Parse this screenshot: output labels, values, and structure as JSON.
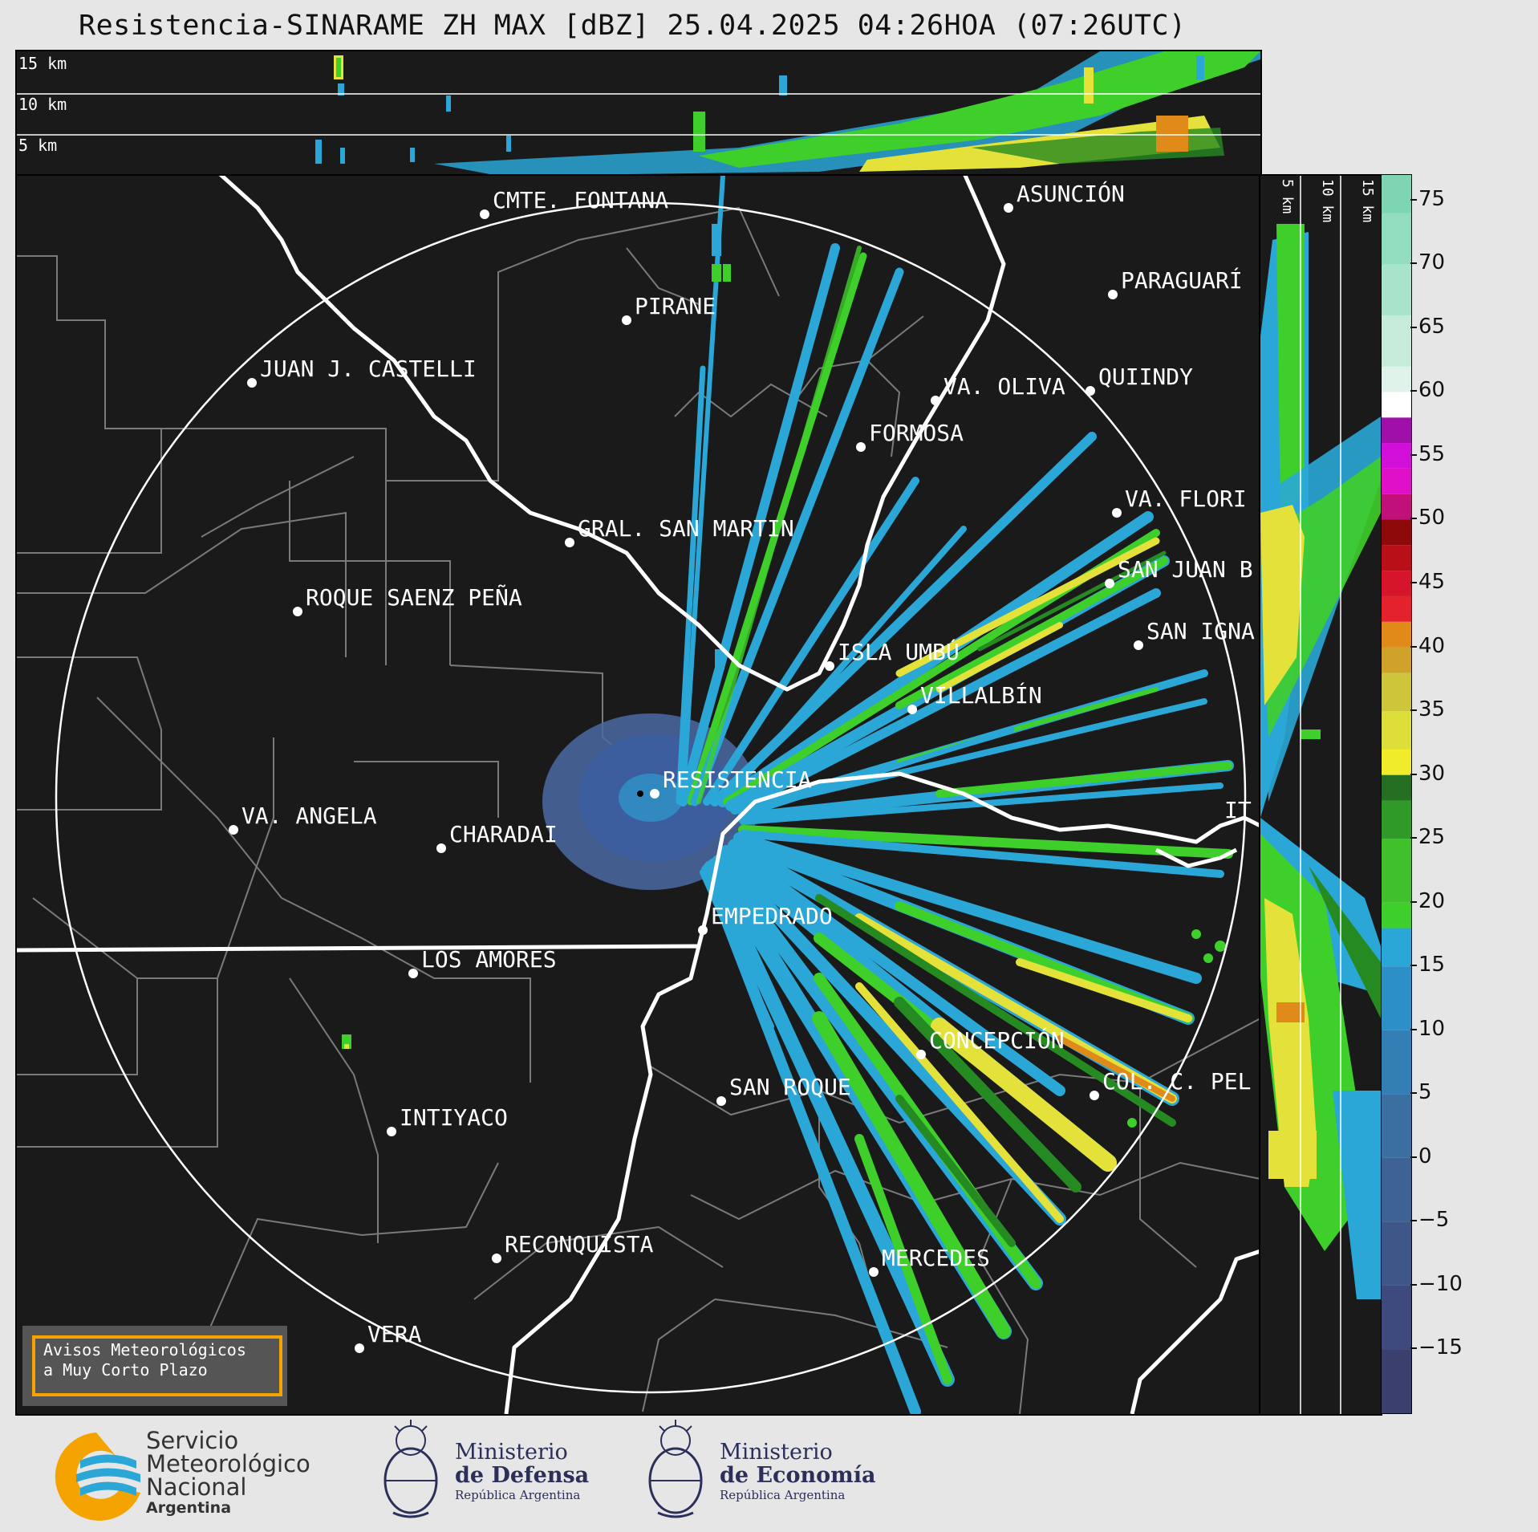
{
  "title": "Resistencia-SINARAME ZH MAX [dBZ] 25.04.2025 04:26HOA (07:26UTC)",
  "height_labels_top": [
    "15 km",
    "10 km",
    "5 km"
  ],
  "height_labels_side": [
    "5 km",
    "10 km",
    "15 km"
  ],
  "colorbar": {
    "unit": "dBZ",
    "ticks": [
      "75",
      "70",
      "65",
      "60",
      "55",
      "50",
      "45",
      "40",
      "35",
      "30",
      "25",
      "20",
      "15",
      "10",
      "5",
      "0",
      "−5",
      "−10",
      "−15"
    ]
  },
  "cities": [
    {
      "name": "CMTE. FONTANA"
    },
    {
      "name": "ASUNCIÓN"
    },
    {
      "name": "PARAGUARÍ"
    },
    {
      "name": "PIRANE"
    },
    {
      "name": "JUAN J. CASTELLI"
    },
    {
      "name": "VA. OLIVA"
    },
    {
      "name": "QUIINDY"
    },
    {
      "name": "FORMOSA"
    },
    {
      "name": "VA. FLORI"
    },
    {
      "name": "GRAL. SAN MARTIN"
    },
    {
      "name": "SAN JUAN B"
    },
    {
      "name": "ROQUE SAENZ PEÑA"
    },
    {
      "name": "SAN IGNA"
    },
    {
      "name": "ISLA UMBÚ"
    },
    {
      "name": "VILLALBÍN"
    },
    {
      "name": "RESISTENCIA"
    },
    {
      "name": "IT"
    },
    {
      "name": "VA. ANGELA"
    },
    {
      "name": "CHARADAI"
    },
    {
      "name": "EMPEDRADO"
    },
    {
      "name": "LOS AMORES"
    },
    {
      "name": "CONCEPCIÓN"
    },
    {
      "name": "SAN ROQUE"
    },
    {
      "name": "COL. C. PEL"
    },
    {
      "name": "INTIYACO"
    },
    {
      "name": "RECONQUISTA"
    },
    {
      "name": "MERCEDES"
    },
    {
      "name": "VERA"
    }
  ],
  "warning": {
    "line1": "Avisos Meteorológicos",
    "line2": "a Muy Corto Plazo"
  },
  "logos": {
    "smn": {
      "l1": "Servicio",
      "l2": "Meteorológico",
      "l3": "Nacional",
      "l4": "Argentina"
    },
    "defensa": {
      "l1": "Ministerio",
      "l2": "de Defensa",
      "l3": "República Argentina"
    },
    "economia": {
      "l1": "Ministerio",
      "l2": "de Economía",
      "l3": "República Argentina"
    }
  },
  "colors": {
    "background": "#1a1a1a",
    "cyan_echo": "#2aa7d6",
    "green_echo": "#3fcf2a",
    "dark_green_echo": "#258a22",
    "yellow_echo": "#e4e23a",
    "orange_echo": "#e08a1a",
    "accent_orange": "#f5a300"
  }
}
